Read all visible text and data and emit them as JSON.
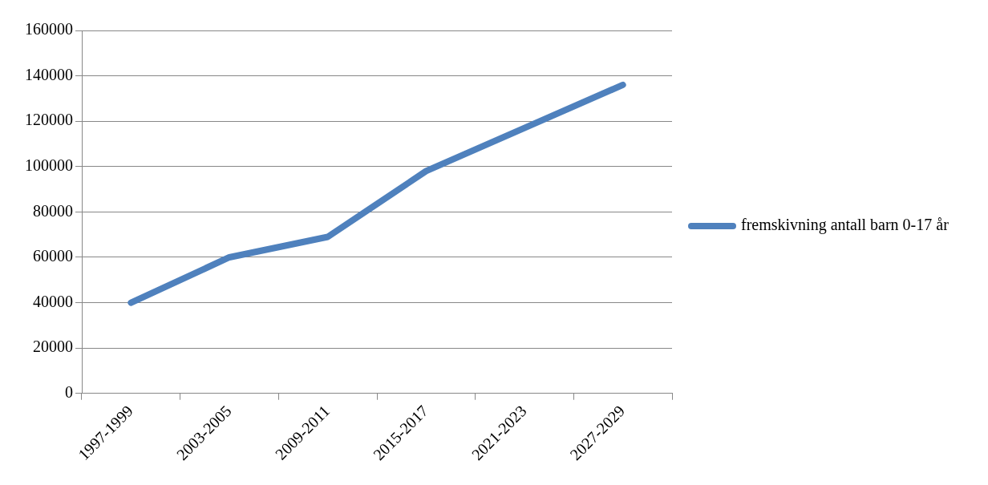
{
  "chart_data": {
    "type": "line",
    "categories": [
      "1997-1999",
      "2003-2005",
      "2009-2011",
      "2015-2017",
      "2021-2023",
      "2027-2029"
    ],
    "series": [
      {
        "name": "fremskivning antall barn 0-17 år",
        "color": "#4f81bd",
        "values": [
          40000,
          60000,
          69000,
          98000,
          117000,
          136000
        ]
      }
    ],
    "ylim": [
      0,
      160000
    ],
    "yticks": [
      0,
      20000,
      40000,
      60000,
      80000,
      100000,
      120000,
      140000,
      160000
    ],
    "grid": "y",
    "legend": "right",
    "marker": "none",
    "line_style": "solid"
  }
}
